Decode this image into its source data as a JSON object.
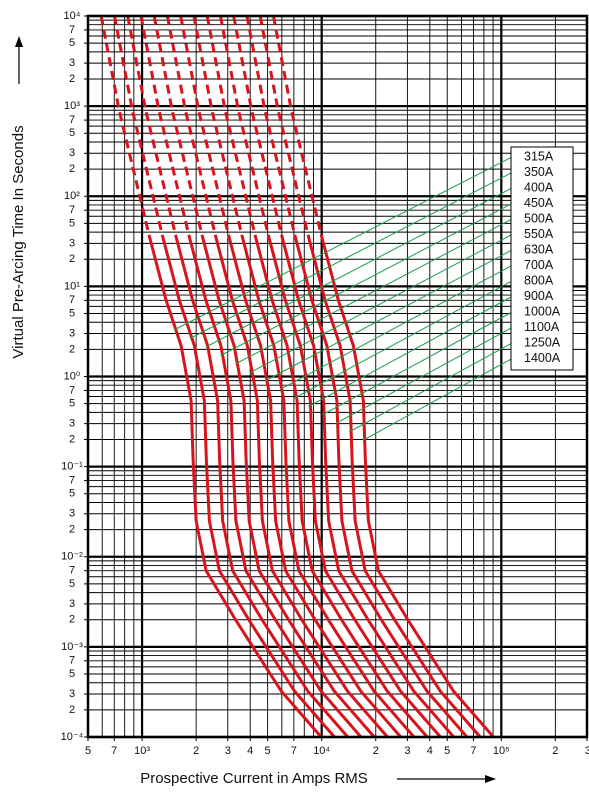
{
  "chart_data": {
    "type": "line",
    "xlabel": "Prospective Current in Amps RMS",
    "ylabel": "Virtual Pre-Arcing Time In Seconds",
    "xlog": true,
    "ylog": true,
    "grid": true,
    "legend": "right",
    "leader_color": "#1a9e48",
    "xlim": [
      500,
      300000
    ],
    "ylim": [
      0.0001,
      10000
    ],
    "xticks": [
      {
        "value": 500,
        "label": "5"
      },
      {
        "value": 700,
        "label": "7"
      },
      {
        "value": 1000,
        "label": "10³"
      },
      {
        "value": 2000,
        "label": "2"
      },
      {
        "value": 3000,
        "label": "3"
      },
      {
        "value": 4000,
        "label": "4"
      },
      {
        "value": 5000,
        "label": "5"
      },
      {
        "value": 7000,
        "label": "7"
      },
      {
        "value": 10000,
        "label": "10⁴"
      },
      {
        "value": 20000,
        "label": "2"
      },
      {
        "value": 30000,
        "label": "3"
      },
      {
        "value": 40000,
        "label": "4"
      },
      {
        "value": 50000,
        "label": "5"
      },
      {
        "value": 70000,
        "label": "7"
      },
      {
        "value": 100000,
        "label": "10⁵"
      },
      {
        "value": 200000,
        "label": "2"
      },
      {
        "value": 300000,
        "label": "3"
      }
    ],
    "yticks": [
      {
        "value": 10000,
        "label": "10⁴"
      },
      {
        "value": 7000,
        "label": "7"
      },
      {
        "value": 5000,
        "label": "5"
      },
      {
        "value": 3000,
        "label": "3"
      },
      {
        "value": 2000,
        "label": "2"
      },
      {
        "value": 1000,
        "label": "10³"
      },
      {
        "value": 700,
        "label": "7"
      },
      {
        "value": 500,
        "label": "5"
      },
      {
        "value": 300,
        "label": "3"
      },
      {
        "value": 200,
        "label": "2"
      },
      {
        "value": 100,
        "label": "10²"
      },
      {
        "value": 70,
        "label": "7"
      },
      {
        "value": 50,
        "label": "5"
      },
      {
        "value": 30,
        "label": "3"
      },
      {
        "value": 20,
        "label": "2"
      },
      {
        "value": 10,
        "label": "10¹"
      },
      7,
      5,
      3,
      2,
      {
        "value": 1,
        "label": "10⁰"
      },
      {
        "value": 0.7,
        "label": "7"
      },
      {
        "value": 0.5,
        "label": "5"
      },
      {
        "value": 0.3,
        "label": "3"
      },
      {
        "value": 0.2,
        "label": "2"
      },
      {
        "value": 0.1,
        "label": "10⁻¹"
      },
      {
        "value": 0.07,
        "label": "7"
      },
      {
        "value": 0.05,
        "label": "5"
      },
      {
        "value": 0.03,
        "label": "3"
      },
      {
        "value": 0.02,
        "label": "2"
      },
      {
        "value": 0.01,
        "label": "10⁻²"
      },
      {
        "value": 0.007,
        "label": "7"
      },
      {
        "value": 0.005,
        "label": "5"
      },
      {
        "value": 0.003,
        "label": "3"
      },
      {
        "value": 0.002,
        "label": "2"
      },
      {
        "value": 0.001,
        "label": "10⁻³"
      },
      {
        "value": 0.0007,
        "label": "7"
      },
      {
        "value": 0.0005,
        "label": "5"
      },
      {
        "value": 0.0003,
        "label": "3"
      },
      {
        "value": 0.0002,
        "label": "2"
      },
      {
        "value": 0.0001,
        "label": "10⁻⁴"
      }
    ],
    "xgrid": [
      500,
      600,
      700,
      800,
      900,
      1000,
      2000,
      3000,
      4000,
      5000,
      6000,
      7000,
      8000,
      9000,
      10000,
      20000,
      30000,
      40000,
      50000,
      60000,
      70000,
      80000,
      90000,
      100000,
      200000,
      300000
    ],
    "ygrid": [
      0.0001,
      0.0002,
      0.0003,
      0.0004,
      0.0005,
      0.0006,
      0.0007,
      0.0008,
      0.0009,
      0.001,
      0.002,
      0.003,
      0.004,
      0.005,
      0.006,
      0.007,
      0.008,
      0.009,
      0.01,
      0.02,
      0.03,
      0.04,
      0.05,
      0.06,
      0.07,
      0.08,
      0.09,
      0.1,
      0.2,
      0.3,
      0.4,
      0.5,
      0.6,
      0.7,
      0.8,
      0.9,
      1,
      2,
      3,
      4,
      5,
      6,
      7,
      8,
      9,
      10,
      20,
      30,
      40,
      50,
      60,
      70,
      80,
      90,
      100,
      200,
      300,
      400,
      500,
      600,
      700,
      800,
      900,
      1000,
      2000,
      3000,
      4000,
      5000,
      6000,
      7000,
      8000,
      9000,
      10000
    ],
    "series": [
      {
        "name": "315A",
        "color": "#d7141e",
        "dashed_x": [
          592,
          745,
          1094
        ],
        "dashed_values": [
          10000,
          903,
          37
        ],
        "x": [
          1094,
          1361,
          1649,
          1875,
          1924,
          2000,
          2274,
          3340,
          5946,
          9940
        ],
        "values": [
          37,
          7,
          2.2,
          0.54,
          0.117,
          0.025,
          0.007,
          0.00195,
          0.000324,
          0.0001
        ]
      },
      {
        "name": "350A",
        "color": "#d7141e",
        "dashed_x": [
          702,
          883,
          1296
        ],
        "dashed_values": [
          10000,
          903,
          37
        ],
        "x": [
          1296,
          1613,
          1954,
          2222,
          2280,
          2370,
          2695,
          3958,
          7046,
          11780
        ],
        "values": [
          37,
          7,
          2.2,
          0.54,
          0.117,
          0.025,
          0.007,
          0.00195,
          0.000324,
          0.0001
        ]
      },
      {
        "name": "400A",
        "color": "#d7141e",
        "dashed_x": [
          832,
          1047,
          1537
        ],
        "dashed_values": [
          10000,
          903,
          37
        ],
        "x": [
          1537,
          1912,
          2317,
          2634,
          2703,
          2810,
          3195,
          4693,
          8354,
          13966
        ],
        "values": [
          37,
          7,
          2.2,
          0.54,
          0.117,
          0.025,
          0.007,
          0.00195,
          0.000324,
          0.0001
        ]
      },
      {
        "name": "450A",
        "color": "#d7141e",
        "dashed_x": [
          986,
          1240,
          1822
        ],
        "dashed_values": [
          10000,
          903,
          37
        ],
        "x": [
          1822,
          2266,
          2746,
          3122,
          3203,
          3330,
          3786,
          5561,
          9900,
          16550
        ],
        "values": [
          37,
          7,
          2.2,
          0.54,
          0.117,
          0.025,
          0.007,
          0.00195,
          0.000324,
          0.0001
        ]
      },
      {
        "name": "500A",
        "color": "#d7141e",
        "dashed_x": [
          1168,
          1470,
          2158
        ],
        "dashed_values": [
          10000,
          903,
          37
        ],
        "x": [
          2158,
          2685,
          3253,
          3699,
          3796,
          3946,
          4487,
          6590,
          11731,
          19612
        ],
        "values": [
          37,
          7,
          2.2,
          0.54,
          0.117,
          0.025,
          0.007,
          0.00195,
          0.000324,
          0.0001
        ]
      },
      {
        "name": "550A",
        "color": "#d7141e",
        "dashed_x": [
          1384,
          1742,
          2558
        ],
        "dashed_values": [
          10000,
          903,
          37
        ],
        "x": [
          2558,
          3182,
          3855,
          4384,
          4498,
          4676,
          5317,
          7809,
          13902,
          23240
        ],
        "values": [
          37,
          7,
          2.2,
          0.54,
          0.117,
          0.025,
          0.007,
          0.00195,
          0.000324,
          0.0001
        ]
      },
      {
        "name": "630A",
        "color": "#d7141e",
        "dashed_x": [
          1640,
          2064,
          3031
        ],
        "dashed_values": [
          10000,
          903,
          37
        ],
        "x": [
          3031,
          3771,
          4569,
          5196,
          5331,
          5542,
          6301,
          9255,
          16476,
          27544
        ],
        "values": [
          37,
          7,
          2.2,
          0.54,
          0.117,
          0.025,
          0.007,
          0.00195,
          0.000324,
          0.0001
        ]
      },
      {
        "name": "700A",
        "color": "#d7141e",
        "dashed_x": [
          1944,
          2447,
          3593
        ],
        "dashed_values": [
          10000,
          903,
          37
        ],
        "x": [
          3593,
          4470,
          5415,
          6158,
          6318,
          6568,
          7468,
          10969,
          19527,
          32643
        ],
        "values": [
          37,
          7,
          2.2,
          0.54,
          0.117,
          0.025,
          0.007,
          0.00195,
          0.000324,
          0.0001
        ]
      },
      {
        "name": "800A",
        "color": "#d7141e",
        "dashed_x": [
          2304,
          2900,
          4258
        ],
        "dashed_values": [
          10000,
          903,
          37
        ],
        "x": [
          4258,
          5297,
          6418,
          7298,
          7488,
          7784,
          8850,
          13000,
          23142,
          38687
        ],
        "values": [
          37,
          7,
          2.2,
          0.54,
          0.117,
          0.025,
          0.007,
          0.00195,
          0.000324,
          0.0001
        ]
      },
      {
        "name": "900A",
        "color": "#d7141e",
        "dashed_x": [
          2731,
          3437,
          5047
        ],
        "dashed_values": [
          10000,
          903,
          37
        ],
        "x": [
          5047,
          6278,
          7607,
          8649,
          8875,
          9226,
          10490,
          15407,
          27429,
          45854
        ],
        "values": [
          37,
          7,
          2.2,
          0.54,
          0.117,
          0.025,
          0.007,
          0.00195,
          0.000324,
          0.0001
        ]
      },
      {
        "name": "1000A",
        "color": "#d7141e",
        "dashed_x": [
          3236,
          4073,
          5981
        ],
        "dashed_values": [
          10000,
          903,
          37
        ],
        "x": [
          5981,
          7441,
          9015,
          10251,
          10518,
          10934,
          12432,
          18260,
          32507,
          54342
        ],
        "values": [
          37,
          7,
          2.2,
          0.54,
          0.117,
          0.025,
          0.007,
          0.00195,
          0.000324,
          0.0001
        ]
      },
      {
        "name": "1100A",
        "color": "#d7141e",
        "dashed_x": [
          3836,
          4827,
          7088
        ],
        "dashed_values": [
          10000,
          903,
          37
        ],
        "x": [
          7088,
          8818,
          10684,
          12148,
          12466,
          12958,
          14733,
          21640,
          38524,
          64401
        ],
        "values": [
          37,
          7,
          2.2,
          0.54,
          0.117,
          0.025,
          0.007,
          0.00195,
          0.000324,
          0.0001
        ]
      },
      {
        "name": "1250A",
        "color": "#d7141e",
        "dashed_x": [
          4545,
          5720,
          8400
        ],
        "dashed_values": [
          10000,
          903,
          37
        ],
        "x": [
          8400,
          10450,
          12661,
          14396,
          14772,
          15356,
          17460,
          25645,
          45653,
          76319
        ],
        "values": [
          37,
          7,
          2.2,
          0.54,
          0.117,
          0.025,
          0.007,
          0.00195,
          0.000324,
          0.0001
        ]
      },
      {
        "name": "1400A",
        "color": "#d7141e",
        "dashed_x": [
          5387,
          6779,
          9954
        ],
        "dashed_values": [
          10000,
          903,
          37
        ],
        "x": [
          9954,
          12384,
          15004,
          17061,
          17506,
          18198,
          20691,
          30391,
          54103,
          90444
        ],
        "values": [
          37,
          7,
          2.2,
          0.54,
          0.117,
          0.025,
          0.007,
          0.00195,
          0.000324,
          0.0001
        ]
      }
    ]
  }
}
